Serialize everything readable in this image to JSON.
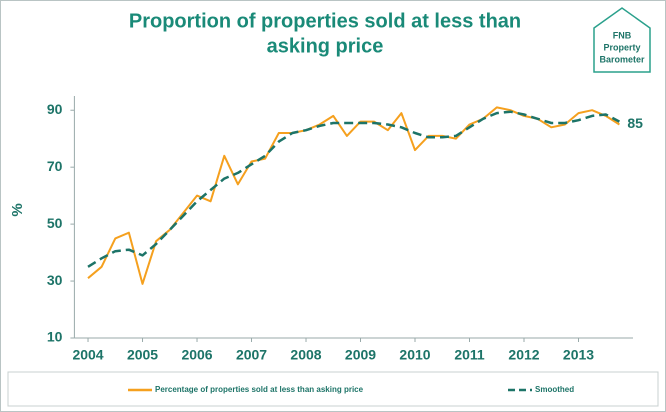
{
  "chart_data": {
    "type": "line",
    "title": [
      "Proportion of properties sold at less than",
      "asking price"
    ],
    "logo": [
      "FNB",
      "Property",
      "Barometer"
    ],
    "y_label": "%",
    "annotation": "85",
    "x": [
      2004,
      2004.25,
      2004.5,
      2004.75,
      2005,
      2005.25,
      2005.5,
      2005.75,
      2006,
      2006.25,
      2006.5,
      2006.75,
      2007,
      2007.25,
      2007.5,
      2007.75,
      2008,
      2008.25,
      2008.5,
      2008.75,
      2009,
      2009.25,
      2009.5,
      2009.75,
      2010,
      2010.25,
      2010.5,
      2010.75,
      2011,
      2011.25,
      2011.5,
      2011.75,
      2012,
      2012.25,
      2012.5,
      2012.75,
      2013,
      2013.25,
      2013.5,
      2013.75
    ],
    "series": [
      {
        "name": "Percentage of properties sold at less than asking price",
        "color": "#f5a01e",
        "dashed": false,
        "values": [
          31,
          35,
          45,
          47,
          29,
          44,
          48,
          54,
          60,
          58,
          74,
          64,
          72,
          73,
          82,
          82,
          83,
          85,
          88,
          81,
          86,
          86,
          83,
          89,
          76,
          81,
          81,
          80,
          85,
          87,
          91,
          90,
          88,
          87,
          84,
          85,
          89,
          90,
          88,
          85
        ]
      },
      {
        "name": "Smoothed",
        "color": "#1d7468",
        "dashed": true,
        "values": [
          35,
          38,
          40.5,
          41,
          39,
          43,
          48,
          53,
          58,
          62,
          66,
          68,
          71,
          74,
          79,
          82,
          83,
          84.5,
          85.5,
          85.5,
          85.5,
          85.5,
          85,
          84,
          82,
          80.5,
          80.5,
          81,
          84,
          87,
          89,
          89.5,
          88.5,
          87,
          85.5,
          85.5,
          86.5,
          88,
          88.5,
          86
        ]
      }
    ],
    "xlim": [
      2003.75,
      2014
    ],
    "xticks": [
      2004,
      2005,
      2006,
      2007,
      2008,
      2009,
      2010,
      2011,
      2012,
      2013
    ],
    "ylim": [
      10,
      95
    ],
    "yticks": [
      10,
      30,
      50,
      70,
      90
    ],
    "grid": false
  }
}
